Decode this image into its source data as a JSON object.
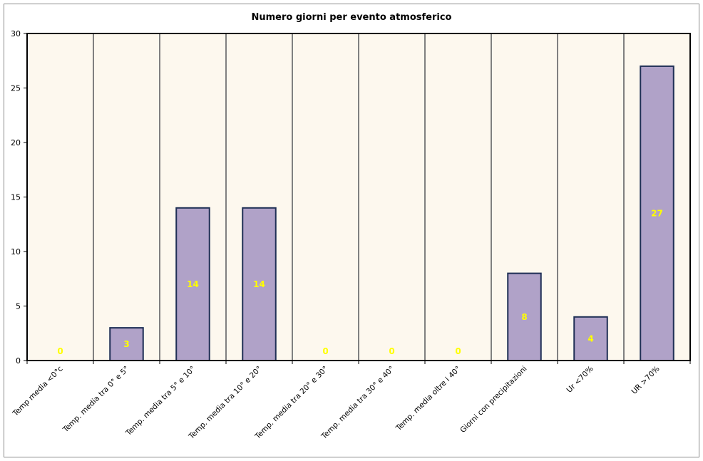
{
  "chart_data": {
    "type": "bar",
    "title": "Numero giorni per evento atmosferico",
    "xlabel": "",
    "ylabel": "",
    "categories": [
      "Temp media <0°c",
      "Temp. media tra 0° e 5°",
      "Temp. media tra 5° e 10°",
      "Temp. media tra 10° e 20°",
      "Temp. media tra 20° e 30°",
      "Temp. media tra 30° e 40°",
      "Temp. media oltre i 40°",
      "Giorni con precipitazioni",
      "Ur <70%",
      "UR >70%"
    ],
    "values": [
      0,
      3,
      14,
      14,
      0,
      0,
      0,
      8,
      4,
      27
    ],
    "ylim": [
      0,
      30
    ],
    "yticks": [
      0,
      5,
      10,
      15,
      20,
      25,
      30
    ],
    "grid": "vertical",
    "legend": "none",
    "colors": {
      "bar_fill": "#b0a2c8",
      "bar_edge": "#1f2f55",
      "plot_bg": "#fdf8ee",
      "gridline": "#808080",
      "data_label": "#ffff00"
    }
  }
}
